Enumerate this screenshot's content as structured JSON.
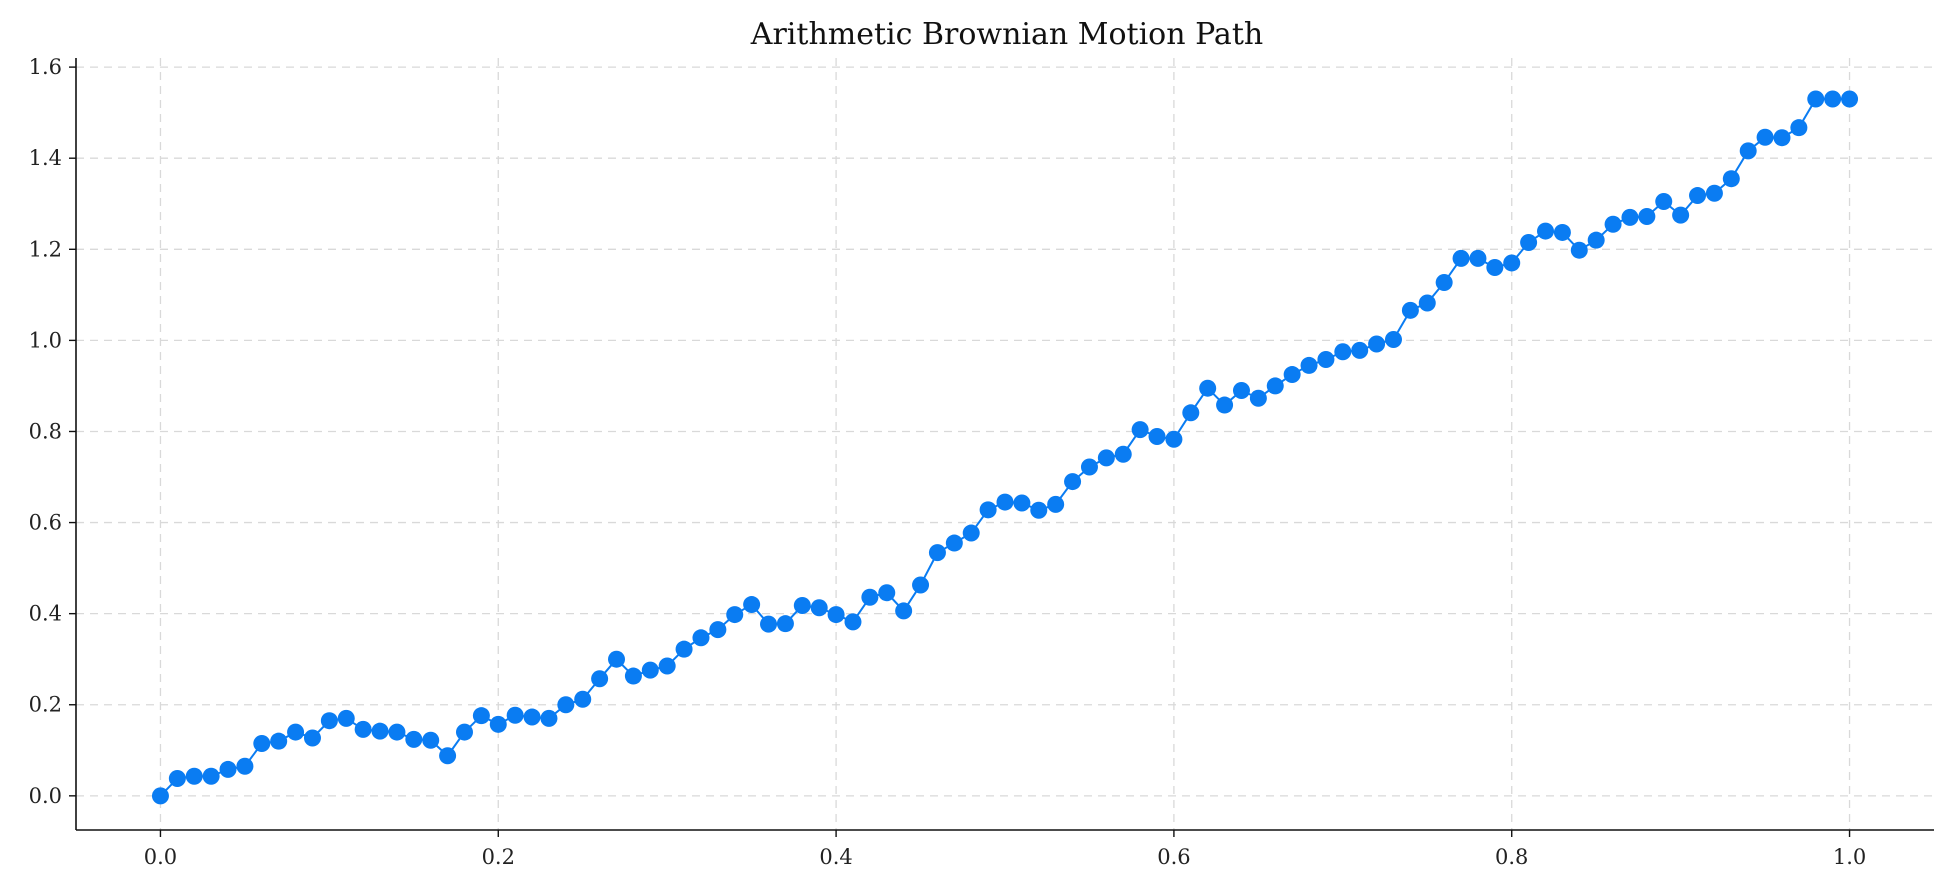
{
  "chart_data": {
    "type": "line",
    "title": "Arithmetic Brownian Motion Path",
    "xlabel": "",
    "ylabel": "",
    "xlim": [
      -0.05,
      1.05
    ],
    "ylim": [
      -0.075,
      1.62
    ],
    "xticks": [
      0.0,
      0.2,
      0.4,
      0.6,
      0.8,
      1.0
    ],
    "xtick_labels": [
      "0.0",
      "0.2",
      "0.4",
      "0.6",
      "0.8",
      "1.0"
    ],
    "yticks": [
      0.0,
      0.2,
      0.4,
      0.6,
      0.8,
      1.0,
      1.2,
      1.4,
      1.6
    ],
    "ytick_labels": [
      "0.0",
      "0.2",
      "0.4",
      "0.6",
      "0.8",
      "1.0",
      "1.2",
      "1.4",
      "1.6"
    ],
    "grid": true,
    "markers": true,
    "colors": {
      "series": "#0a7cf2",
      "grid": "#d9d9d9",
      "axis": "#111111"
    },
    "x": [
      0.0,
      0.01,
      0.02,
      0.03,
      0.04,
      0.05,
      0.06,
      0.07,
      0.08,
      0.09,
      0.1,
      0.11,
      0.12,
      0.13,
      0.14,
      0.15,
      0.16,
      0.17,
      0.18,
      0.19,
      0.2,
      0.21,
      0.22,
      0.23,
      0.24,
      0.25,
      0.26,
      0.27,
      0.28,
      0.29,
      0.3,
      0.31,
      0.32,
      0.33,
      0.34,
      0.35,
      0.36,
      0.37,
      0.38,
      0.39,
      0.4,
      0.41,
      0.42,
      0.43,
      0.44,
      0.45,
      0.46,
      0.47,
      0.48,
      0.49,
      0.5,
      0.51,
      0.52,
      0.53,
      0.54,
      0.55,
      0.56,
      0.57,
      0.58,
      0.59,
      0.6,
      0.61,
      0.62,
      0.63,
      0.64,
      0.65,
      0.66,
      0.67,
      0.68,
      0.69,
      0.7,
      0.71,
      0.72,
      0.73,
      0.74,
      0.75,
      0.76,
      0.77,
      0.78,
      0.79,
      0.8,
      0.81,
      0.82,
      0.83,
      0.84,
      0.85,
      0.86,
      0.87,
      0.88,
      0.89,
      0.9,
      0.91,
      0.92,
      0.93,
      0.94,
      0.95,
      0.96,
      0.97,
      0.98,
      0.99,
      1.0
    ],
    "series": [
      {
        "values": [
          0.0,
          0.038,
          0.043,
          0.043,
          0.058,
          0.065,
          0.115,
          0.12,
          0.14,
          0.127,
          0.165,
          0.17,
          0.146,
          0.142,
          0.14,
          0.124,
          0.122,
          0.088,
          0.14,
          0.176,
          0.157,
          0.177,
          0.173,
          0.17,
          0.2,
          0.212,
          0.257,
          0.3,
          0.263,
          0.276,
          0.285,
          0.322,
          0.347,
          0.365,
          0.398,
          0.42,
          0.377,
          0.378,
          0.418,
          0.413,
          0.398,
          0.382,
          0.436,
          0.446,
          0.406,
          0.463,
          0.534,
          0.555,
          0.577,
          0.628,
          0.645,
          0.643,
          0.627,
          0.64,
          0.69,
          0.722,
          0.742,
          0.75,
          0.804,
          0.789,
          0.783,
          0.841,
          0.895,
          0.858,
          0.89,
          0.873,
          0.9,
          0.925,
          0.945,
          0.958,
          0.975,
          0.978,
          0.992,
          1.002,
          1.066,
          1.082,
          1.127,
          1.18,
          1.18,
          1.16,
          1.17,
          1.215,
          1.24,
          1.237,
          1.198,
          1.22,
          1.255,
          1.27,
          1.272,
          1.305,
          1.275,
          1.318,
          1.323,
          1.355,
          1.416,
          1.446,
          1.445,
          1.467,
          1.53,
          1.53,
          1.53
        ]
      }
    ]
  }
}
